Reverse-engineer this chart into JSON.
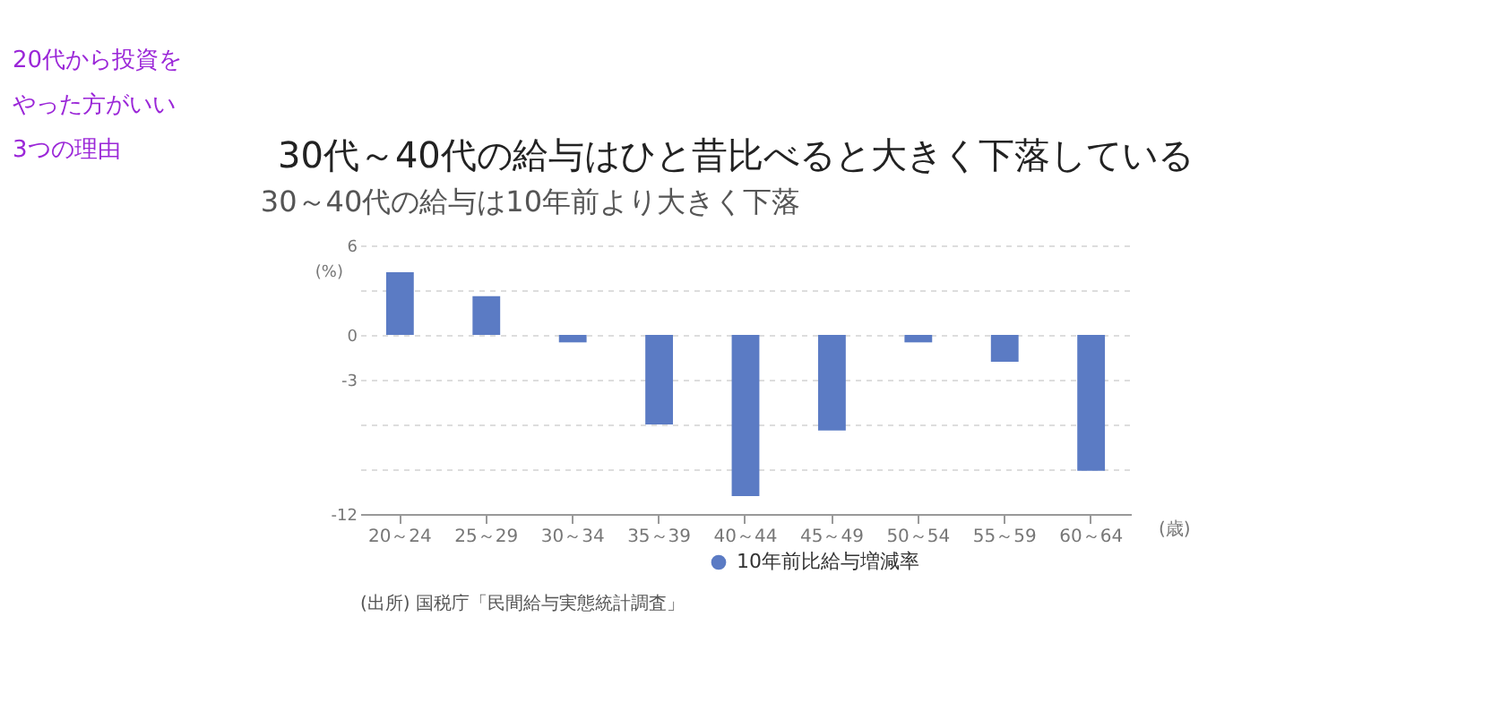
{
  "chart_data": {
    "type": "bar",
    "title": "30代～40代の給与はひと昔比べると大きく下落している",
    "subtitle": "30～40代の給与は10年前より大きく下落",
    "categories": [
      "20～24",
      "25～29",
      "30～34",
      "35～39",
      "40～44",
      "45～49",
      "50～54",
      "55～59",
      "60～64"
    ],
    "series": [
      {
        "name": "10年前比給与増減率",
        "color": "#5b7bc4",
        "values": [
          4.2,
          2.6,
          -0.5,
          -6.0,
          -10.8,
          -6.4,
          -0.5,
          -1.8,
          -9.1
        ]
      }
    ],
    "ylabel": "(%)",
    "xlabel": "(歳)",
    "ylim": [
      -12,
      6
    ],
    "yticks": [
      6,
      {
        "value": 3,
        "label": null
      },
      0,
      -3,
      {
        "value": -6,
        "label": null
      },
      {
        "value": -9,
        "label": null
      },
      -12
    ],
    "grid": "y",
    "legend": "bottom",
    "annotations": [
      "20代から投資を",
      "やった方がいい",
      "3つの理由",
      "(出所) 国税庁「民間給与実態統計調査」"
    ]
  }
}
